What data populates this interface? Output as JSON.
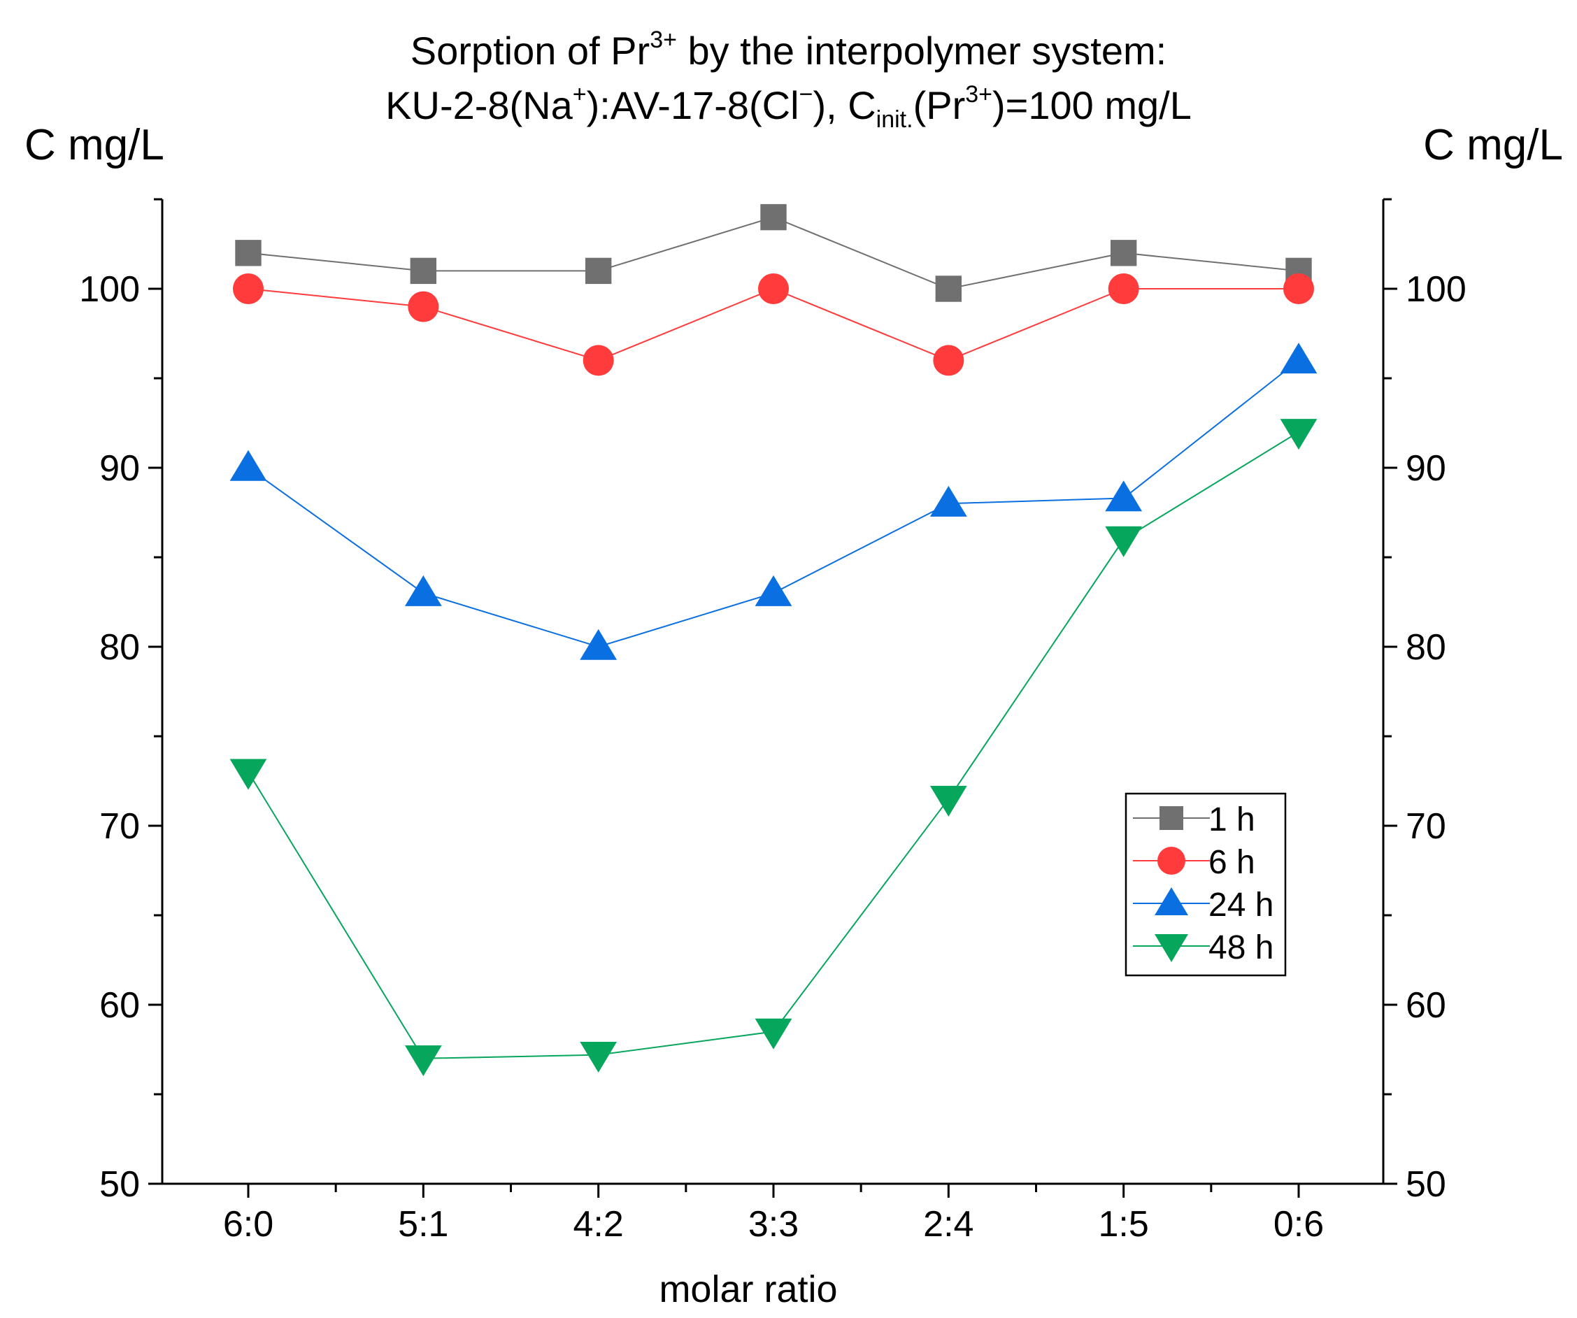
{
  "chart_data": {
    "type": "line",
    "title": {
      "line1_before": "Sorption of Pr",
      "line1_sup": "3+",
      "line1_after": " by the interpolymer system:",
      "line2_a": "KU-2-8(Na",
      "line2_sup1": "+",
      "line2_b": "):AV-17-8(Cl",
      "line2_sup2": "−",
      "line2_c": "), C",
      "line2_sub": "init.",
      "line2_d": "(Pr",
      "line2_sup3": "3+",
      "line2_e": ")=100 mg/L"
    },
    "xlabel": "molar ratio",
    "ylabel_left": "C mg/L",
    "ylabel_right": "C mg/L",
    "categories": [
      "6:0",
      "5:1",
      "4:2",
      "3:3",
      "2:4",
      "1:5",
      "0:6"
    ],
    "ylim": [
      50,
      105
    ],
    "yticks": [
      50,
      60,
      70,
      80,
      90,
      100
    ],
    "grid": false,
    "legend_position": "right-middle",
    "series": [
      {
        "name": "1 h",
        "marker": "square",
        "color": "#707070",
        "values": [
          102,
          101,
          101,
          104,
          100,
          102,
          101
        ]
      },
      {
        "name": "6 h",
        "marker": "circle",
        "color": "#ff3b3b",
        "values": [
          100,
          99,
          96,
          100,
          96,
          100,
          100
        ]
      },
      {
        "name": "24 h",
        "marker": "triangle-up",
        "color": "#0a6fe0",
        "values": [
          90,
          83,
          80,
          83,
          88,
          88.3,
          96
        ]
      },
      {
        "name": "48 h",
        "marker": "triangle-down",
        "color": "#06a65c",
        "values": [
          73,
          57,
          57.2,
          58.5,
          71.5,
          86,
          92
        ]
      }
    ]
  }
}
